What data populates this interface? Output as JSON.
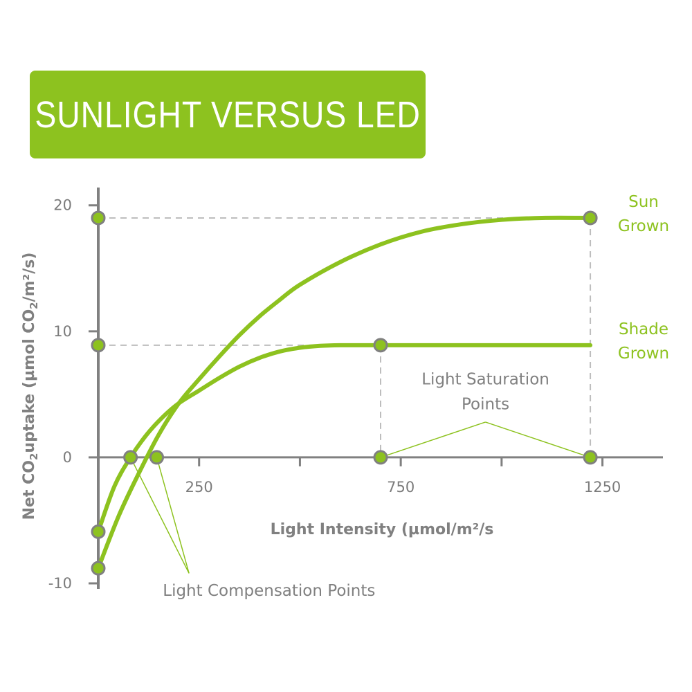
{
  "banner": {
    "title": "SUNLIGHT VERSUS LED"
  },
  "colors": {
    "accent": "#8dc21f",
    "axis": "#808080",
    "guide": "#bdbdbd",
    "text": "#7b7b7b",
    "white": "#ffffff"
  },
  "chart_data": {
    "type": "line",
    "title": "SUNLIGHT VERSUS LED",
    "xlabel": "Light Intensity (µmol/m²/s",
    "ylabel": "Net CO₂uptake (µmol CO₂/m²/s)",
    "ylabel_parts": {
      "pre": "Net CO",
      "sub1": "2",
      "mid": "uptake (µmol CO",
      "sub2": "2",
      "post": "/m²/s)"
    },
    "xlim": [
      0,
      1400
    ],
    "ylim": [
      -10,
      20
    ],
    "x_ticks": [
      250,
      500,
      750,
      1000,
      1250
    ],
    "x_tick_labels": [
      {
        "x": 250,
        "label": "250"
      },
      {
        "x": 750,
        "label": "750"
      },
      {
        "x": 1250,
        "label": "1250"
      }
    ],
    "y_ticks": [
      {
        "y": -10,
        "label": "-10"
      },
      {
        "y": 0,
        "label": "0"
      },
      {
        "y": 10,
        "label": "10"
      },
      {
        "y": 20,
        "label": "20"
      }
    ],
    "grid": false,
    "series": [
      {
        "name": "Sun Grown",
        "label_lines": [
          "Sun",
          "Grown"
        ],
        "points": [
          [
            0,
            -8.8
          ],
          [
            50,
            -4.7
          ],
          [
            100,
            -1.3
          ],
          [
            150,
            1.8
          ],
          [
            200,
            4.3
          ],
          [
            250,
            6.2
          ],
          [
            300,
            8.0
          ],
          [
            350,
            9.7
          ],
          [
            400,
            11.2
          ],
          [
            450,
            12.5
          ],
          [
            500,
            13.7
          ],
          [
            600,
            15.5
          ],
          [
            700,
            16.9
          ],
          [
            800,
            17.9
          ],
          [
            900,
            18.5
          ],
          [
            1000,
            18.85
          ],
          [
            1100,
            19.0
          ],
          [
            1220,
            19.0
          ]
        ]
      },
      {
        "name": "Shade Grown",
        "label_lines": [
          "Shade",
          "Grown"
        ],
        "points": [
          [
            0,
            -5.9
          ],
          [
            40,
            -2.3
          ],
          [
            80,
            0.0
          ],
          [
            120,
            1.8
          ],
          [
            160,
            3.2
          ],
          [
            200,
            4.3
          ],
          [
            250,
            5.3
          ],
          [
            300,
            6.3
          ],
          [
            350,
            7.2
          ],
          [
            400,
            7.9
          ],
          [
            450,
            8.4
          ],
          [
            500,
            8.7
          ],
          [
            550,
            8.85
          ],
          [
            600,
            8.9
          ],
          [
            700,
            8.9
          ],
          [
            900,
            8.9
          ],
          [
            1100,
            8.9
          ],
          [
            1220,
            8.9
          ]
        ]
      }
    ],
    "markers": [
      {
        "x": 0,
        "y": 19.0
      },
      {
        "x": 0,
        "y": 8.9
      },
      {
        "x": 0,
        "y": -5.9
      },
      {
        "x": 0,
        "y": -8.8
      },
      {
        "x": 80,
        "y": 0
      },
      {
        "x": 145,
        "y": 0
      },
      {
        "x": 700,
        "y": 0
      },
      {
        "x": 1220,
        "y": 0
      },
      {
        "x": 700,
        "y": 8.9
      },
      {
        "x": 1220,
        "y": 19.0
      }
    ],
    "guides": [
      {
        "from": [
          0,
          19.0
        ],
        "to": [
          1220,
          19.0
        ]
      },
      {
        "from": [
          1220,
          19.0
        ],
        "to": [
          1220,
          0
        ]
      },
      {
        "from": [
          0,
          8.9
        ],
        "to": [
          700,
          8.9
        ]
      },
      {
        "from": [
          700,
          8.9
        ],
        "to": [
          700,
          0
        ]
      }
    ],
    "annotations": [
      {
        "lines": [
          "Light Compensation Points"
        ],
        "at": [
          160,
          -11
        ],
        "pointers": [
          {
            "x": 80,
            "y": 0
          },
          {
            "x": 145,
            "y": 0
          }
        ],
        "origin": [
          225,
          -9.2
        ]
      },
      {
        "lines": [
          "Light Saturation",
          "Points"
        ],
        "at": [
          960,
          5.8
        ],
        "pointers": [
          {
            "x": 700,
            "y": 0
          },
          {
            "x": 1220,
            "y": 0
          }
        ],
        "origin": [
          960,
          2.8
        ]
      }
    ]
  }
}
